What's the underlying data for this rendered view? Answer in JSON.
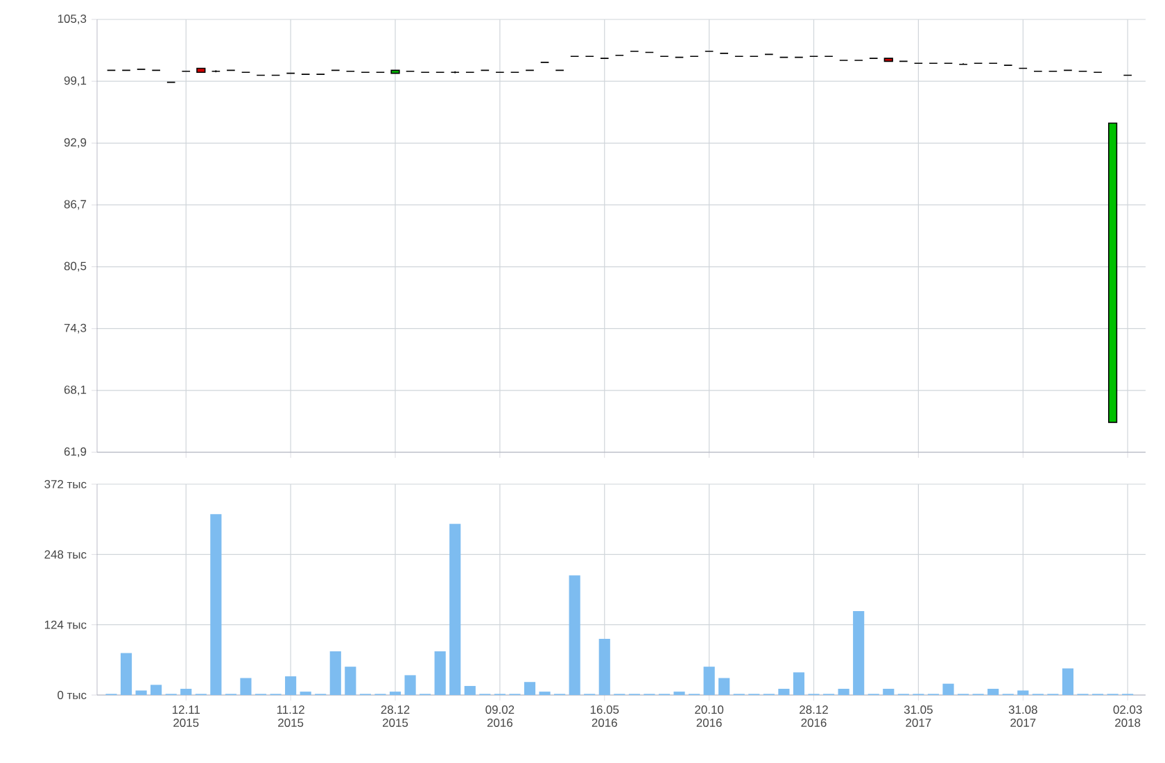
{
  "chart_data": [
    {
      "type": "candlestick",
      "categories": [
        null,
        null,
        null,
        null,
        null,
        null,
        null,
        null,
        null,
        null,
        null,
        null,
        null,
        null,
        null,
        null,
        null,
        null,
        null,
        null,
        null,
        null,
        null,
        null,
        null,
        null,
        null,
        null,
        null,
        null,
        null,
        null,
        null,
        null,
        null,
        null,
        null,
        null,
        null,
        null,
        null,
        null,
        null,
        null,
        null,
        null,
        null,
        null,
        null,
        null,
        null,
        null,
        null,
        null,
        null,
        null,
        null,
        null,
        null,
        null,
        null,
        null,
        null,
        null,
        null,
        null,
        null,
        null,
        null
      ],
      "ohlc": [
        [
          100.2,
          100.2,
          100.2,
          100.2
        ],
        [
          100.2,
          100.2,
          100.2,
          100.2
        ],
        [
          100.3,
          100.3,
          100.3,
          100.3
        ],
        [
          100.2,
          100.2,
          100.2,
          100.2
        ],
        [
          99.0,
          99.0,
          99.0,
          99.0
        ],
        [
          100.1,
          100.1,
          100.1,
          100.1
        ],
        [
          100.4,
          100.4,
          100.0,
          100.0
        ],
        [
          100.1,
          100.2,
          100.0,
          100.1
        ],
        [
          100.2,
          100.2,
          100.2,
          100.2
        ],
        [
          100.0,
          100.0,
          100.0,
          100.0
        ],
        [
          99.7,
          99.7,
          99.7,
          99.7
        ],
        [
          99.7,
          99.7,
          99.7,
          99.7
        ],
        [
          99.9,
          99.9,
          99.9,
          99.9
        ],
        [
          99.8,
          99.8,
          99.8,
          99.8
        ],
        [
          99.8,
          99.8,
          99.8,
          99.8
        ],
        [
          100.2,
          100.2,
          100.2,
          100.2
        ],
        [
          100.1,
          100.1,
          100.1,
          100.1
        ],
        [
          100.0,
          100.0,
          100.0,
          100.0
        ],
        [
          100.0,
          100.0,
          100.0,
          100.0
        ],
        [
          99.9,
          100.2,
          99.9,
          100.2
        ],
        [
          100.1,
          100.1,
          100.1,
          100.1
        ],
        [
          100.0,
          100.0,
          100.0,
          100.0
        ],
        [
          100.0,
          100.0,
          100.0,
          100.0
        ],
        [
          100.0,
          100.1,
          99.9,
          100.0
        ],
        [
          100.0,
          100.0,
          100.0,
          100.0
        ],
        [
          100.2,
          100.2,
          100.2,
          100.2
        ],
        [
          100.0,
          100.0,
          100.0,
          100.0
        ],
        [
          100.0,
          100.0,
          100.0,
          100.0
        ],
        [
          100.2,
          100.2,
          100.2,
          100.2
        ],
        [
          101.0,
          101.0,
          101.0,
          101.0
        ],
        [
          100.2,
          100.2,
          100.2,
          100.2
        ],
        [
          101.6,
          101.6,
          101.6,
          101.6
        ],
        [
          101.6,
          101.6,
          101.6,
          101.6
        ],
        [
          101.4,
          101.4,
          101.4,
          101.4
        ],
        [
          101.7,
          101.7,
          101.7,
          101.7
        ],
        [
          102.1,
          102.1,
          102.1,
          102.1
        ],
        [
          102.0,
          102.0,
          102.0,
          102.0
        ],
        [
          101.6,
          101.6,
          101.6,
          101.6
        ],
        [
          101.5,
          101.5,
          101.5,
          101.5
        ],
        [
          101.6,
          101.6,
          101.6,
          101.6
        ],
        [
          102.1,
          102.1,
          102.1,
          102.1
        ],
        [
          101.9,
          101.9,
          101.9,
          101.9
        ],
        [
          101.6,
          101.6,
          101.6,
          101.6
        ],
        [
          101.6,
          101.6,
          101.6,
          101.6
        ],
        [
          101.8,
          101.8,
          101.8,
          101.8
        ],
        [
          101.5,
          101.5,
          101.5,
          101.5
        ],
        [
          101.5,
          101.5,
          101.5,
          101.5
        ],
        [
          101.6,
          101.6,
          101.6,
          101.6
        ],
        [
          101.6,
          101.6,
          101.6,
          101.6
        ],
        [
          101.2,
          101.2,
          101.2,
          101.2
        ],
        [
          101.2,
          101.2,
          101.2,
          101.2
        ],
        [
          101.4,
          101.4,
          101.4,
          101.4
        ],
        [
          101.4,
          101.4,
          101.1,
          101.1
        ],
        [
          101.1,
          101.1,
          101.1,
          101.1
        ],
        [
          100.9,
          100.9,
          100.9,
          100.9
        ],
        [
          100.9,
          100.9,
          100.9,
          100.9
        ],
        [
          100.9,
          100.9,
          100.9,
          100.9
        ],
        [
          100.8,
          100.9,
          100.8,
          100.8
        ],
        [
          100.9,
          100.9,
          100.9,
          100.9
        ],
        [
          100.9,
          100.9,
          100.9,
          100.9
        ],
        [
          100.7,
          100.7,
          100.7,
          100.7
        ],
        [
          100.4,
          100.4,
          100.4,
          100.4
        ],
        [
          100.1,
          100.1,
          100.1,
          100.1
        ],
        [
          100.1,
          100.1,
          100.1,
          100.1
        ],
        [
          100.2,
          100.2,
          100.2,
          100.2
        ],
        [
          100.1,
          100.1,
          100.1,
          100.1
        ],
        [
          100.0,
          100.0,
          100.0,
          100.0
        ],
        [
          64.9,
          94.9,
          64.9,
          94.9
        ],
        [
          99.7,
          99.7,
          99.7,
          99.7
        ]
      ],
      "colors": [
        "#000000",
        "#000000",
        "#000000",
        "#000000",
        "#000000",
        "#000000",
        "#d00000",
        "#000000",
        "#000000",
        "#000000",
        "#000000",
        "#000000",
        "#000000",
        "#000000",
        "#000000",
        "#000000",
        "#000000",
        "#000000",
        "#000000",
        "#00c000",
        "#000000",
        "#000000",
        "#000000",
        "#000000",
        "#000000",
        "#000000",
        "#000000",
        "#000000",
        "#000000",
        "#000000",
        "#000000",
        "#000000",
        "#000000",
        "#000000",
        "#000000",
        "#000000",
        "#000000",
        "#000000",
        "#000000",
        "#000000",
        "#000000",
        "#000000",
        "#000000",
        "#000000",
        "#000000",
        "#000000",
        "#000000",
        "#000000",
        "#000000",
        "#000000",
        "#000000",
        "#000000",
        "#d00000",
        "#000000",
        "#000000",
        "#000000",
        "#000000",
        "#000000",
        "#000000",
        "#000000",
        "#000000",
        "#000000",
        "#000000",
        "#000000",
        "#000000",
        "#000000",
        "#000000",
        "#00c000",
        "#000000"
      ],
      "ylim": [
        61.9,
        105.3
      ],
      "yticks": [
        {
          "value": 61.9,
          "label": "61,9"
        },
        {
          "value": 68.1,
          "label": "68,1"
        },
        {
          "value": 74.3,
          "label": "74,3"
        },
        {
          "value": 80.5,
          "label": "80,5"
        },
        {
          "value": 86.7,
          "label": "86,7"
        },
        {
          "value": 92.9,
          "label": "92,9"
        },
        {
          "value": 99.1,
          "label": "99,1"
        },
        {
          "value": 105.3,
          "label": "105,3"
        }
      ],
      "grid": true,
      "tick_labels": "y"
    },
    {
      "type": "bar",
      "categories": [
        null,
        null,
        null,
        null,
        null,
        "12.11 2015",
        null,
        null,
        null,
        null,
        null,
        null,
        "11.12 2015",
        null,
        null,
        null,
        null,
        null,
        null,
        "28.12 2015",
        null,
        null,
        null,
        null,
        null,
        null,
        "09.02 2016",
        null,
        null,
        null,
        null,
        null,
        null,
        "16.05 2016",
        null,
        null,
        null,
        null,
        null,
        null,
        "20.10 2016",
        null,
        null,
        null,
        null,
        null,
        null,
        "28.12 2016",
        null,
        null,
        null,
        null,
        null,
        null,
        "31.05 2017",
        null,
        null,
        null,
        null,
        null,
        null,
        "31.08 2017",
        null,
        null,
        null,
        null,
        null,
        null,
        "02.03 2018"
      ],
      "values": [
        2,
        74,
        8,
        18,
        2,
        11,
        2,
        319,
        2,
        30,
        2,
        2,
        33,
        6,
        2,
        77,
        50,
        2,
        2,
        6,
        35,
        2,
        77,
        302,
        16,
        2,
        2,
        2,
        23,
        6,
        2,
        211,
        2,
        99,
        2,
        2,
        2,
        2,
        6,
        2,
        50,
        30,
        2,
        2,
        2,
        11,
        40,
        2,
        2,
        11,
        148,
        2,
        11,
        2,
        2,
        2,
        20,
        2,
        2,
        11,
        2,
        8,
        2,
        2,
        47,
        2,
        2,
        2,
        2
      ],
      "color": "#7dbcf0",
      "ylim": [
        0,
        372
      ],
      "yticks": [
        {
          "value": 0,
          "label": "0 тыс"
        },
        {
          "value": 124,
          "label": "124 тыс"
        },
        {
          "value": 248,
          "label": "248 тыс"
        },
        {
          "value": 372,
          "label": "372 тыс"
        }
      ],
      "grid": true
    }
  ]
}
